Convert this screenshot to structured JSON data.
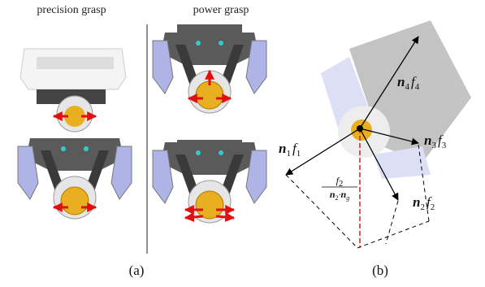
{
  "panel_a": {
    "headers": [
      "precision grasp",
      "power grasp"
    ],
    "caption": "(a)"
  },
  "panel_b": {
    "caption": "(b)",
    "force_labels": [
      {
        "n": "n",
        "n_sub": "1",
        "f": "f",
        "f_sub": "1"
      },
      {
        "n": "n",
        "n_sub": "4",
        "f": "f",
        "f_sub": "4"
      },
      {
        "n": "n",
        "n_sub": "3",
        "f": "f",
        "f_sub": "3"
      },
      {
        "n": "n",
        "n_sub": "2",
        "f": "f",
        "f_sub": "2"
      }
    ],
    "fraction": {
      "num": "f",
      "num_sub": "2",
      "den_a": "n",
      "den_a_sub": "2",
      "dot": "·",
      "den_b": "n",
      "den_b_sub": "g"
    }
  }
}
